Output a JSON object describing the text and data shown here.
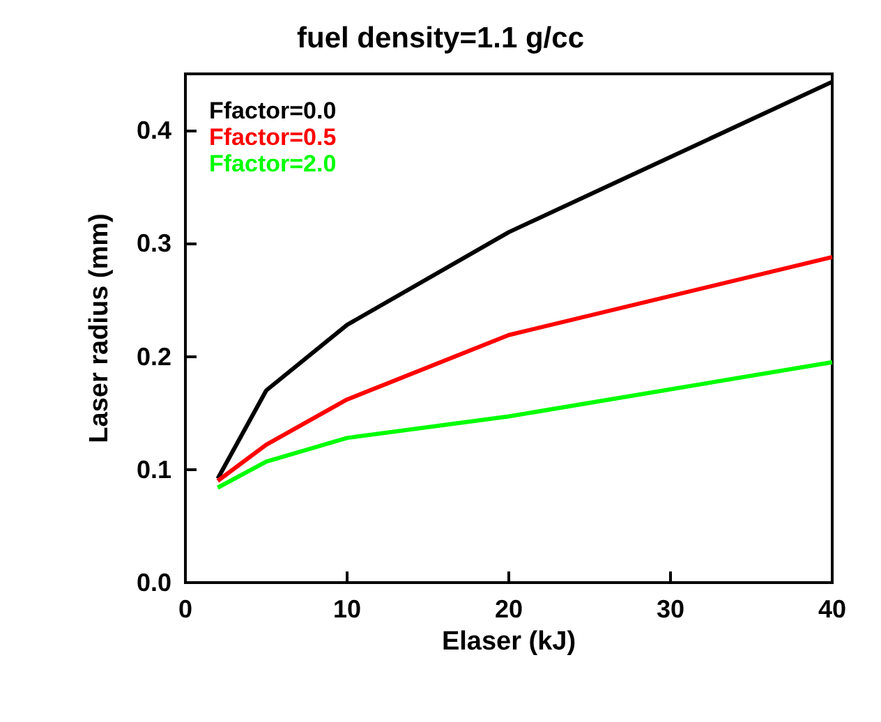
{
  "chart_data": {
    "type": "line",
    "title": "fuel density=1.1 g/cc",
    "xlabel": "Elaser (kJ)",
    "ylabel": "Laser radius (mm)",
    "x": [
      2,
      5,
      10,
      20,
      40
    ],
    "series": [
      {
        "name": "Ffactor=0.0",
        "color": "#000000",
        "values": [
          0.092,
          0.17,
          0.228,
          0.31,
          0.443
        ]
      },
      {
        "name": "Ffactor=0.5",
        "color": "#ff0000",
        "values": [
          0.09,
          0.122,
          0.162,
          0.219,
          0.288
        ]
      },
      {
        "name": "Ffactor=2.0",
        "color": "#00ff00",
        "values": [
          0.084,
          0.107,
          0.128,
          0.147,
          0.195
        ]
      }
    ],
    "xlim": [
      0,
      40
    ],
    "xticks": [
      0,
      10,
      20,
      30,
      40
    ],
    "ylim": [
      0,
      0.45
    ],
    "yticks": [
      {
        "value": 0,
        "label": "0.0"
      },
      {
        "value": 0.1,
        "label": "0.1"
      },
      {
        "value": 0.2,
        "label": "0.2"
      },
      {
        "value": 0.3,
        "label": "0.3"
      },
      {
        "value": 0.4,
        "label": "0.4"
      }
    ],
    "legend": "top left",
    "grid": false,
    "marker": "none",
    "line_style": "solid"
  }
}
